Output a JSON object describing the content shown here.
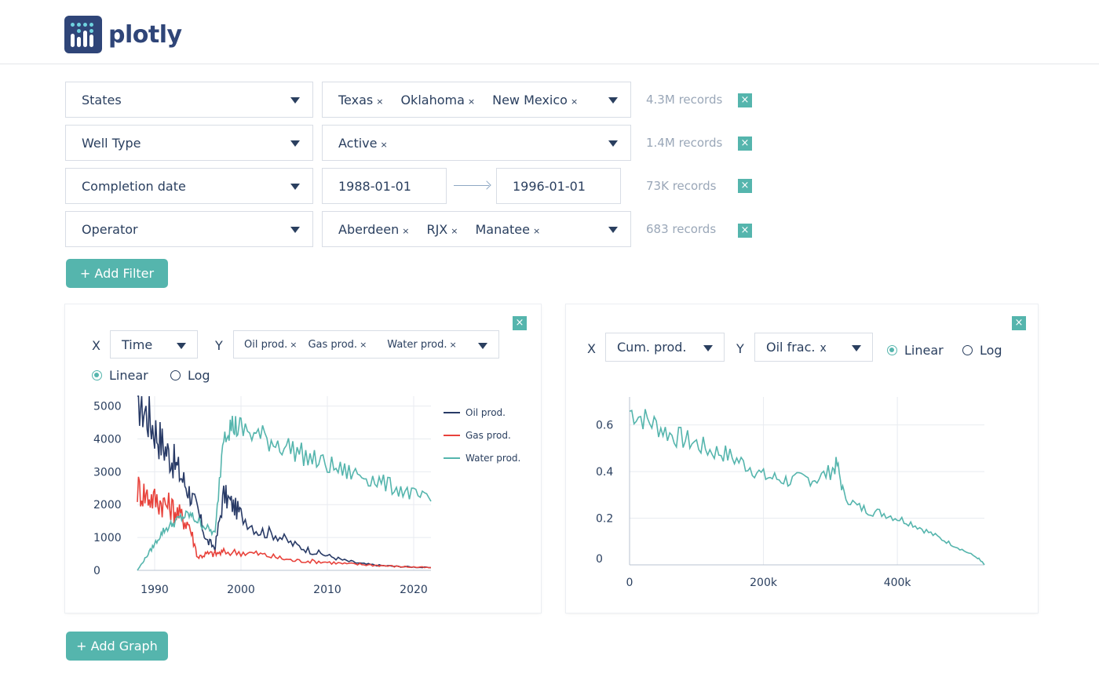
{
  "brand": {
    "name": "plotly",
    "colors": {
      "primary": "#2f4578",
      "accent": "#55b5ad"
    }
  },
  "filters": [
    {
      "field": "States",
      "values": [
        "Texas",
        "Oklahoma",
        "New Mexico"
      ],
      "records": "4.3M records"
    },
    {
      "field": "Well Type",
      "values": [
        "Active"
      ],
      "records": "1.4M records"
    },
    {
      "field": "Completion date",
      "date_from": "1988-01-01",
      "date_to": "1996-01-01",
      "records": "73K records"
    },
    {
      "field": "Operator",
      "values": [
        "Aberdeen",
        "RJX",
        "Manatee"
      ],
      "records": "683 records"
    }
  ],
  "tag_close_glyph": "×",
  "x_button_glyph": "×",
  "add_filter_label": "+ Add Filter",
  "add_graph_label": "+ Add Graph",
  "graph1": {
    "x_label": "X",
    "x_value": "Time",
    "y_label": "Y",
    "y_values": [
      "Oil prod.",
      "Gas prod.",
      "Water prod."
    ],
    "scale_options": [
      "Linear",
      "Log"
    ],
    "selected_scale": "Linear"
  },
  "graph2": {
    "x_label": "X",
    "x_value": "Cum. prod.",
    "y_label": "Y",
    "y_values": [
      "Oil frac."
    ],
    "y_close_glyph": "x",
    "scale_options": [
      "Linear",
      "Log"
    ],
    "selected_scale": "Linear"
  },
  "chart_data": [
    {
      "type": "line",
      "x_ticks": [
        "1990",
        "2000",
        "2010",
        "2020"
      ],
      "y_ticks": [
        "0",
        "1000",
        "2000",
        "3000",
        "4000",
        "5000"
      ],
      "xlim": [
        1988,
        2022
      ],
      "ylim": [
        0,
        5300
      ],
      "legend_position": "right",
      "series": [
        {
          "name": "Oil prod.",
          "color": "#283a66",
          "x": [
            1988,
            1989,
            1990,
            1991,
            1992,
            1993,
            1994,
            1995,
            1996,
            1997,
            1998,
            1999,
            2000,
            2002,
            2004,
            2006,
            2008,
            2010,
            2012,
            2014,
            2016,
            2018,
            2020,
            2022
          ],
          "y": [
            5300,
            4800,
            4300,
            3800,
            3400,
            2900,
            2400,
            1800,
            900,
            700,
            2300,
            2000,
            1700,
            1200,
            1100,
            800,
            600,
            450,
            300,
            200,
            150,
            120,
            100,
            80
          ]
        },
        {
          "name": "Gas prod.",
          "color": "#e8423b",
          "x": [
            1988,
            1989,
            1990,
            1991,
            1992,
            1993,
            1994,
            1995,
            1996,
            1997,
            1998,
            2000,
            2002,
            2004,
            2006,
            2008,
            2010,
            2012,
            2014,
            2016,
            2018,
            2020,
            2022
          ],
          "y": [
            2500,
            2300,
            2150,
            2050,
            1900,
            1650,
            1400,
            400,
            500,
            500,
            550,
            550,
            500,
            400,
            300,
            280,
            250,
            200,
            180,
            150,
            120,
            100,
            80
          ]
        },
        {
          "name": "Water prod.",
          "color": "#55b5ad",
          "x": [
            1988,
            1989,
            1990,
            1991,
            1992,
            1993,
            1994,
            1995,
            1996,
            1997,
            1998,
            1999,
            2000,
            2002,
            2004,
            2006,
            2008,
            2010,
            2012,
            2014,
            2016,
            2018,
            2020,
            2022
          ],
          "y": [
            0,
            400,
            800,
            1200,
            1400,
            1600,
            1700,
            1500,
            1300,
            1100,
            4300,
            4400,
            4300,
            4100,
            3900,
            3700,
            3400,
            3200,
            3000,
            2900,
            2700,
            2500,
            2300,
            2100
          ]
        }
      ]
    },
    {
      "type": "line",
      "x_ticks": [
        "0",
        "200k",
        "400k"
      ],
      "y_ticks": [
        "0",
        "0.2",
        "0.4",
        "0.6"
      ],
      "xlim": [
        0,
        530000
      ],
      "ylim": [
        0,
        0.72
      ],
      "series": [
        {
          "name": "Oil frac.",
          "color": "#55b5ad",
          "x": [
            0,
            20000,
            40000,
            60000,
            80000,
            100000,
            120000,
            140000,
            160000,
            180000,
            200000,
            220000,
            240000,
            260000,
            280000,
            300000,
            310000,
            320000,
            340000,
            360000,
            380000,
            400000,
            420000,
            440000,
            460000,
            480000,
            500000,
            520000,
            530000
          ],
          "y": [
            0.66,
            0.63,
            0.6,
            0.56,
            0.54,
            0.52,
            0.49,
            0.48,
            0.45,
            0.42,
            0.38,
            0.37,
            0.36,
            0.37,
            0.37,
            0.4,
            0.43,
            0.3,
            0.25,
            0.23,
            0.22,
            0.2,
            0.18,
            0.15,
            0.12,
            0.09,
            0.06,
            0.03,
            0.0
          ]
        }
      ]
    }
  ]
}
